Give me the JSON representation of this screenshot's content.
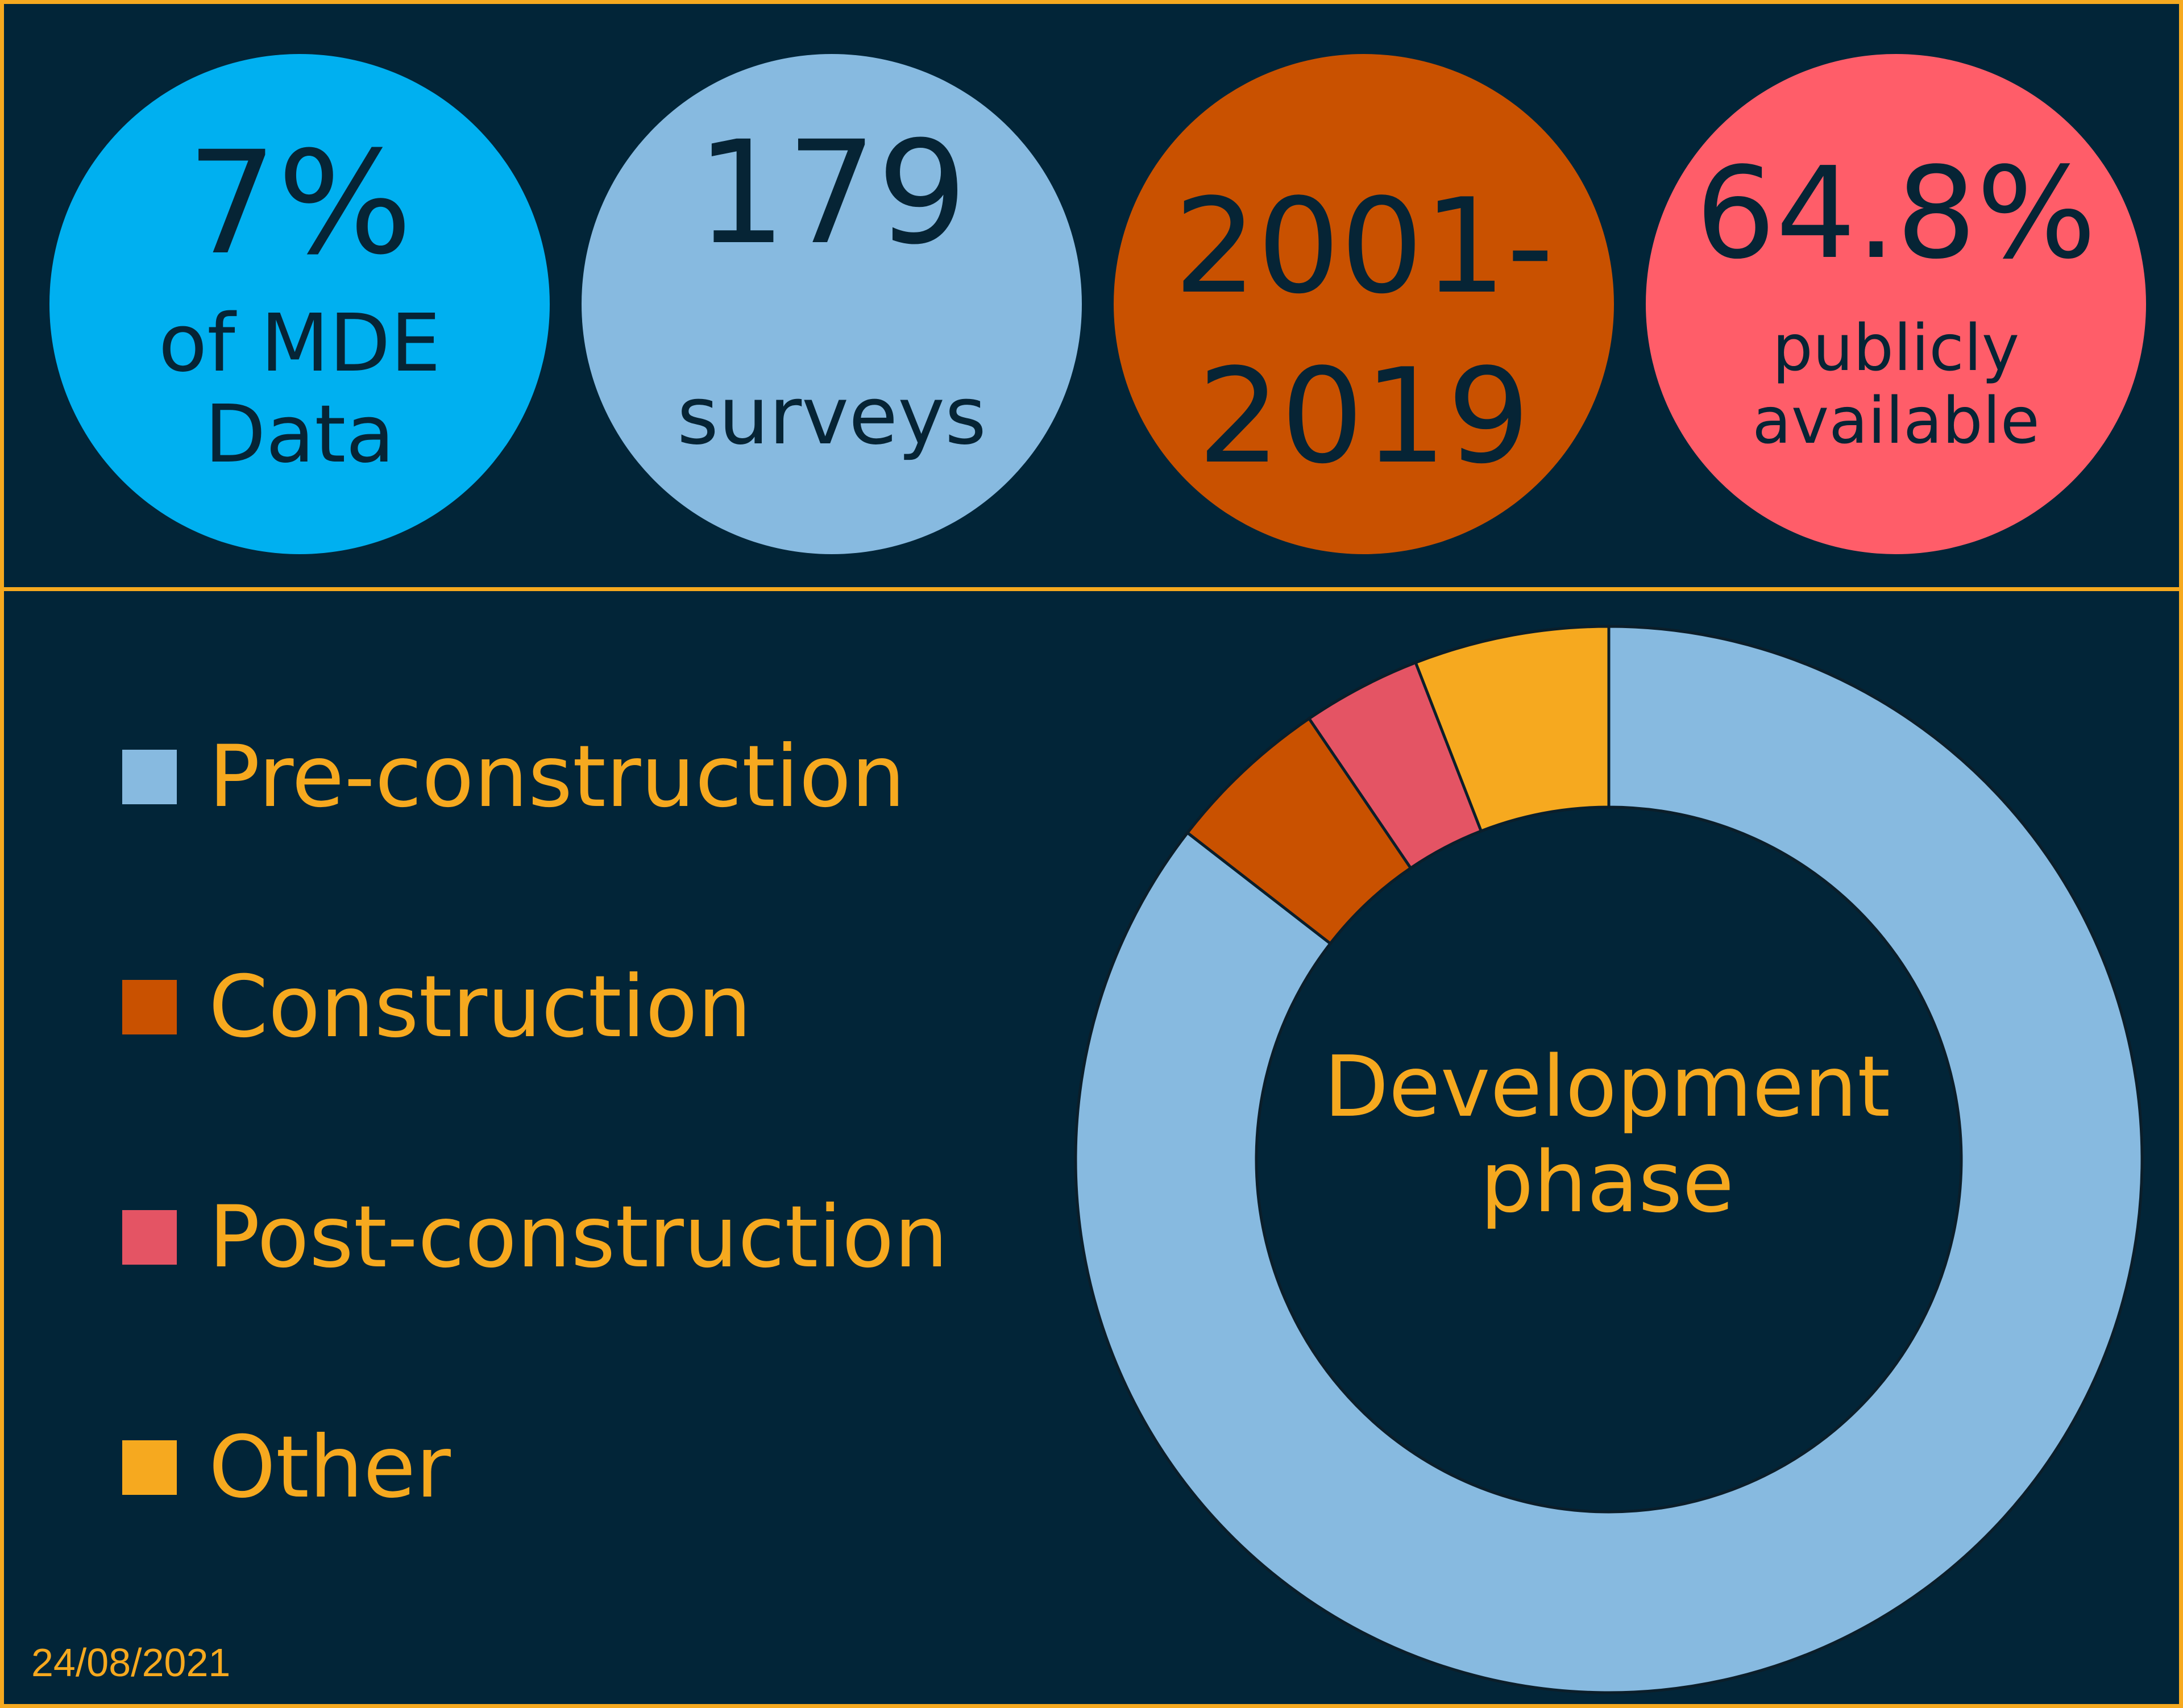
{
  "stats": [
    {
      "value": "7%",
      "label_lines": [
        "of MDE",
        "Data"
      ],
      "color": "#00B0F0"
    },
    {
      "value": "179",
      "label_lines": [
        "surveys"
      ],
      "color": "#87BAE0"
    },
    {
      "value_lines": [
        "2001-",
        "2019"
      ],
      "color": "#C95100"
    },
    {
      "value": "64.8%",
      "label_lines": [
        "publicly",
        "available"
      ],
      "color": "#FF5D69"
    }
  ],
  "chart_data": {
    "type": "pie",
    "donut": true,
    "center_label_lines": [
      "Development",
      "phase"
    ],
    "categories": [
      "Pre-construction",
      "Construction",
      "Post-construction",
      "Other"
    ],
    "values": [
      85.5,
      5.0,
      3.6,
      5.9
    ],
    "colors": [
      "#87BAE0",
      "#C95100",
      "#E45464",
      "#F6A91F"
    ],
    "legend_position": "left",
    "start_angle_deg": 0,
    "direction": "clockwise"
  },
  "footer": {
    "date": "24/08/2021"
  },
  "theme": {
    "background": "#022538",
    "accent": "#F6A91F",
    "dark_text": "#062435"
  }
}
